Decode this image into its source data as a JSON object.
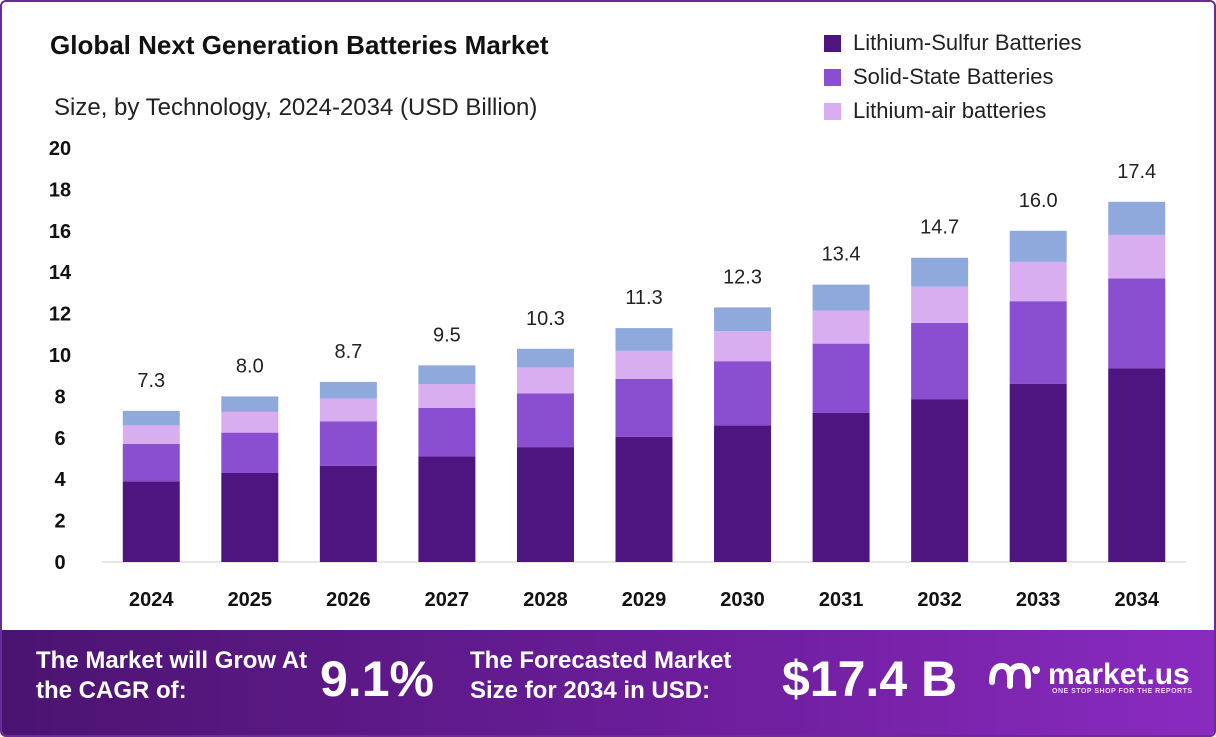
{
  "header": {
    "title": "Global Next Generation Batteries Market",
    "subtitle": "Size, by Technology, 2024-2034 (USD Billion)"
  },
  "legend": [
    {
      "label": "Lithium-Sulfur Batteries",
      "color": "#4e1580"
    },
    {
      "label": "Solid-State Batteries",
      "color": "#8a4fd0"
    },
    {
      "label": "Lithium-air batteries",
      "color": "#d9aef0"
    }
  ],
  "chart_data": {
    "type": "bar",
    "stacked": true,
    "categories": [
      "2024",
      "2025",
      "2026",
      "2027",
      "2028",
      "2029",
      "2030",
      "2031",
      "2032",
      "2033",
      "2034"
    ],
    "series": [
      {
        "name": "Lithium-Sulfur Batteries",
        "color": "#4e1580",
        "values": [
          3.9,
          4.3,
          4.65,
          5.1,
          5.55,
          6.05,
          6.6,
          7.2,
          7.85,
          8.6,
          9.35
        ]
      },
      {
        "name": "Solid-State Batteries",
        "color": "#8a4fd0",
        "values": [
          1.8,
          1.95,
          2.15,
          2.35,
          2.6,
          2.8,
          3.1,
          3.35,
          3.7,
          4.0,
          4.35
        ]
      },
      {
        "name": "Lithium-air batteries",
        "color": "#d9aef0",
        "values": [
          0.9,
          1.0,
          1.1,
          1.15,
          1.25,
          1.35,
          1.45,
          1.6,
          1.75,
          1.9,
          2.1
        ]
      },
      {
        "name": "",
        "color": "#8fa9dd",
        "values": [
          0.7,
          0.75,
          0.8,
          0.9,
          0.9,
          1.1,
          1.15,
          1.25,
          1.4,
          1.5,
          1.6
        ]
      }
    ],
    "totals": [
      "7.3",
      "8.0",
      "8.7",
      "9.5",
      "10.3",
      "11.3",
      "12.3",
      "13.4",
      "14.7",
      "16.0",
      "17.4"
    ],
    "ylim": [
      0,
      20
    ],
    "yticks": [
      "0",
      "2",
      "4",
      "6",
      "8",
      "10",
      "12",
      "14",
      "16",
      "18",
      "20"
    ],
    "xlabel": "",
    "ylabel": "",
    "grid": false,
    "legend_position": "top-right"
  },
  "footer": {
    "cagr_label": "The Market will Grow At the CAGR of:",
    "cagr_value": "9.1%",
    "forecast_label": "The Forecasted Market Size for 2034 in USD:",
    "forecast_value": "$17.4 B",
    "brand": "market.us",
    "brand_tagline": "ONE STOP SHOP FOR THE REPORTS"
  }
}
